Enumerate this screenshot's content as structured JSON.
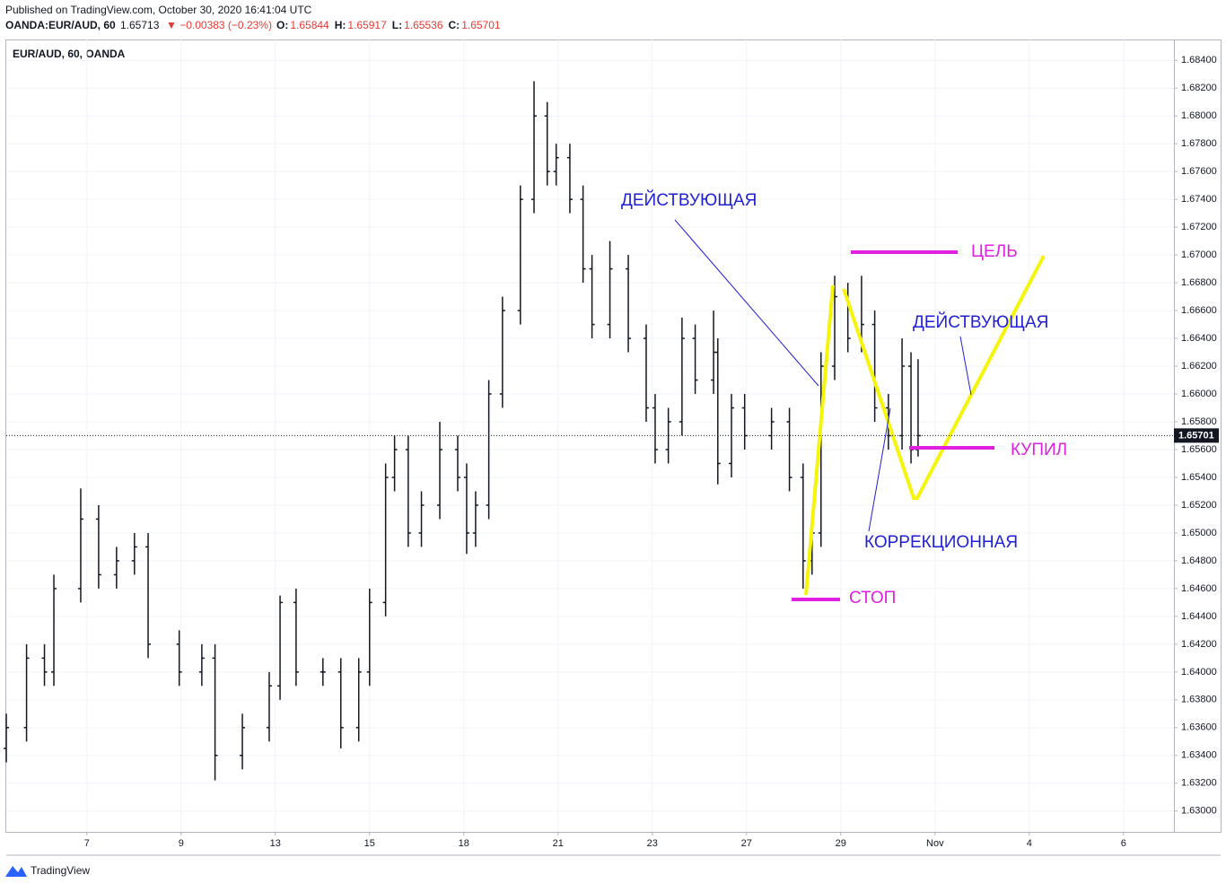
{
  "header": {
    "published": "Published on TradingView.com, October 30, 2020 16:41:04 UTC",
    "symbol": "OANDA:EUR/AUD, 60",
    "price": "1.65713",
    "change": "▼ −0.00383 (−0.23%)",
    "fields": [
      {
        "label": "O:",
        "value": "1.65844"
      },
      {
        "label": "H:",
        "value": "1.65917"
      },
      {
        "label": "L:",
        "value": "1.65536"
      },
      {
        "label": "C:",
        "value": "1.65701"
      }
    ]
  },
  "footer": "TradingView",
  "chart_data": {
    "type": "ohlc",
    "title": "EUR/AUD, 60, OANDA",
    "color": "#131722",
    "grid": true,
    "last_price": 1.65701,
    "xlim": [
      -0.71,
      24.07
    ],
    "xticks": [
      {
        "value": 1,
        "label": "7"
      },
      {
        "value": 3,
        "label": "9"
      },
      {
        "value": 5,
        "label": "13"
      },
      {
        "value": 7,
        "label": "15"
      },
      {
        "value": 9,
        "label": "18"
      },
      {
        "value": 11,
        "label": "21"
      },
      {
        "value": 13,
        "label": "23"
      },
      {
        "value": 15,
        "label": "27"
      },
      {
        "value": 17,
        "label": "29"
      },
      {
        "value": 19,
        "label": "Nov"
      },
      {
        "value": 21,
        "label": "4"
      },
      {
        "value": 23,
        "label": "6"
      }
    ],
    "ylim": [
      1.6285,
      1.6855
    ],
    "yticks": [
      {
        "value": 1.63,
        "label": "1.63000"
      },
      {
        "value": 1.632,
        "label": "1.63200"
      },
      {
        "value": 1.634,
        "label": "1.63400"
      },
      {
        "value": 1.636,
        "label": "1.63600"
      },
      {
        "value": 1.638,
        "label": "1.63800"
      },
      {
        "value": 1.64,
        "label": "1.64000"
      },
      {
        "value": 1.642,
        "label": "1.64200"
      },
      {
        "value": 1.644,
        "label": "1.64400"
      },
      {
        "value": 1.646,
        "label": "1.64600"
      },
      {
        "value": 1.648,
        "label": "1.64800"
      },
      {
        "value": 1.65,
        "label": "1.65000"
      },
      {
        "value": 1.652,
        "label": "1.65200"
      },
      {
        "value": 1.654,
        "label": "1.65400"
      },
      {
        "value": 1.656,
        "label": "1.65600"
      },
      {
        "value": 1.658,
        "label": "1.65800"
      },
      {
        "value": 1.66,
        "label": "1.66000"
      },
      {
        "value": 1.662,
        "label": "1.66200"
      },
      {
        "value": 1.664,
        "label": "1.66400"
      },
      {
        "value": 1.666,
        "label": "1.66600"
      },
      {
        "value": 1.668,
        "label": "1.66800"
      },
      {
        "value": 1.67,
        "label": "1.67000"
      },
      {
        "value": 1.672,
        "label": "1.67200"
      },
      {
        "value": 1.674,
        "label": "1.67400"
      },
      {
        "value": 1.676,
        "label": "1.67600"
      },
      {
        "value": 1.678,
        "label": "1.67800"
      },
      {
        "value": 1.68,
        "label": "1.68000"
      },
      {
        "value": 1.682,
        "label": "1.68200"
      },
      {
        "value": 1.684,
        "label": "1.68400"
      }
    ],
    "x": [
      -0.71,
      -0.28,
      0.1,
      0.3,
      0.87,
      1.25,
      1.63,
      2.01,
      2.3,
      2.96,
      3.44,
      3.72,
      4.3,
      4.87,
      5.1,
      5.44,
      6.01,
      6.39,
      6.77,
      7.0,
      7.34,
      7.53,
      7.82,
      8.1,
      8.49,
      8.87,
      9.06,
      9.25,
      9.53,
      9.82,
      10.2,
      10.49,
      10.77,
      10.96,
      11.25,
      11.53,
      11.72,
      12.1,
      12.49,
      12.87,
      13.06,
      13.34,
      13.63,
      13.91,
      14.3,
      14.39,
      14.68,
      14.96,
      15.53,
      15.91,
      16.2,
      16.39,
      16.58,
      16.87,
      17.15,
      17.44,
      17.72,
      18.01,
      18.3,
      18.49,
      18.64
    ],
    "open": [
      1.6345,
      1.636,
      1.641,
      1.64,
      1.646,
      1.651,
      1.647,
      1.648,
      1.649,
      1.642,
      1.64,
      1.641,
      1.634,
      1.636,
      1.639,
      1.645,
      1.64,
      1.64,
      1.636,
      1.64,
      1.645,
      1.654,
      1.656,
      1.65,
      1.652,
      1.656,
      1.654,
      1.65,
      1.652,
      1.66,
      1.666,
      1.674,
      1.68,
      1.676,
      1.677,
      1.674,
      1.669,
      1.665,
      1.669,
      1.664,
      1.659,
      1.656,
      1.658,
      1.664,
      1.661,
      1.663,
      1.655,
      1.659,
      1.657,
      1.658,
      1.654,
      1.648,
      1.65,
      1.662,
      1.667,
      1.664,
      1.665,
      1.659,
      1.657,
      1.662,
      1.656
    ],
    "high": [
      1.637,
      1.642,
      1.642,
      1.647,
      1.6532,
      1.652,
      1.649,
      1.65,
      1.65,
      1.643,
      1.642,
      1.642,
      1.637,
      1.64,
      1.6455,
      1.646,
      1.641,
      1.641,
      1.641,
      1.646,
      1.655,
      1.657,
      1.657,
      1.653,
      1.658,
      1.657,
      1.655,
      1.653,
      1.661,
      1.667,
      1.675,
      1.6825,
      1.681,
      1.678,
      1.678,
      1.675,
      1.67,
      1.671,
      1.67,
      1.665,
      1.66,
      1.659,
      1.6655,
      1.665,
      1.666,
      1.664,
      1.66,
      1.66,
      1.659,
      1.659,
      1.655,
      1.651,
      1.663,
      1.6685,
      1.668,
      1.6685,
      1.666,
      1.66,
      1.664,
      1.663,
      1.6625
    ],
    "low": [
      1.6335,
      1.635,
      1.639,
      1.639,
      1.645,
      1.646,
      1.646,
      1.647,
      1.641,
      1.639,
      1.639,
      1.6322,
      1.633,
      1.635,
      1.638,
      1.639,
      1.639,
      1.6345,
      1.635,
      1.639,
      1.644,
      1.653,
      1.649,
      1.649,
      1.651,
      1.653,
      1.6485,
      1.649,
      1.651,
      1.659,
      1.665,
      1.673,
      1.675,
      1.675,
      1.673,
      1.668,
      1.664,
      1.664,
      1.663,
      1.658,
      1.655,
      1.655,
      1.657,
      1.66,
      1.66,
      1.6535,
      1.654,
      1.656,
      1.656,
      1.653,
      1.646,
      1.647,
      1.649,
      1.661,
      1.663,
      1.663,
      1.658,
      1.656,
      1.656,
      1.655,
      1.6555
    ],
    "close": [
      1.636,
      1.641,
      1.64,
      1.646,
      1.651,
      1.647,
      1.648,
      1.649,
      1.642,
      1.64,
      1.641,
      1.634,
      1.636,
      1.639,
      1.645,
      1.64,
      1.64,
      1.636,
      1.64,
      1.645,
      1.654,
      1.656,
      1.65,
      1.652,
      1.656,
      1.654,
      1.65,
      1.652,
      1.66,
      1.666,
      1.674,
      1.68,
      1.676,
      1.677,
      1.674,
      1.669,
      1.665,
      1.669,
      1.664,
      1.659,
      1.656,
      1.658,
      1.664,
      1.661,
      1.663,
      1.655,
      1.659,
      1.657,
      1.658,
      1.654,
      1.648,
      1.65,
      1.662,
      1.667,
      1.664,
      1.665,
      1.659,
      1.657,
      1.662,
      1.656,
      1.657
    ],
    "annotations": [
      "ДЕЙСТВУЮЩАЯ",
      "ЦЕЛЬ",
      "ДЕЙСТВУЮЩАЯ",
      "КУПИЛ",
      "КОРРЕКЦИОННАЯ",
      "СТОП"
    ]
  }
}
